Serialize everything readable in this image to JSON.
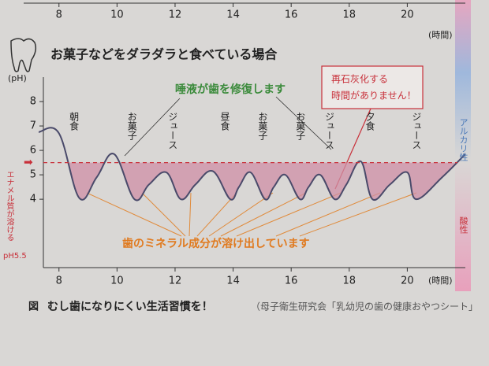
{
  "chart_data": [
    {
      "type": "line",
      "title": "お菓子などをダラダラと食べている場合",
      "ylabel": "(pH)",
      "xlabel": "(時間)",
      "xlim": [
        7.3,
        22
      ],
      "ylim": [
        1.2,
        9
      ],
      "xticks": [
        8,
        10,
        12,
        14,
        16,
        18,
        20
      ],
      "yticks": [
        4,
        5,
        6,
        7,
        8
      ],
      "x": [
        7.3,
        8.0,
        8.7,
        9.3,
        9.9,
        10.6,
        11.1,
        11.7,
        12.2,
        12.7,
        13.3,
        13.9,
        14.2,
        14.6,
        15.1,
        15.4,
        15.8,
        16.3,
        16.6,
        17.0,
        17.5,
        17.9,
        18.4,
        18.8,
        19.4,
        20.0,
        20.3,
        21.2,
        22.0
      ],
      "series": [
        {
          "color": "#4a4a6a",
          "values": [
            6.75,
            6.7,
            4.05,
            4.9,
            5.85,
            4.0,
            4.6,
            5.1,
            4.0,
            4.6,
            5.15,
            4.0,
            4.5,
            5.1,
            4.0,
            4.5,
            5.0,
            4.0,
            4.5,
            5.0,
            4.0,
            4.6,
            5.55,
            4.0,
            4.6,
            5.1,
            4.0,
            4.9,
            5.85
          ]
        }
      ],
      "threshold": {
        "value": 5.5,
        "color": "#c8303a",
        "label": "エナメル質が溶ける",
        "sublabel": "pH5.5"
      },
      "fill_color": "#cf8fa6",
      "events": {
        "x": [
          8.5,
          10.5,
          11.9,
          13.7,
          15.0,
          16.3,
          17.3,
          18.7,
          20.3
        ],
        "labels": [
          "朝食",
          "お菓子",
          "ジュース",
          "昼食",
          "お菓子",
          "お菓子",
          "ジュース",
          "夕食",
          "ジュース"
        ]
      },
      "annotations": {
        "saliva": "唾液が歯を修復します",
        "no_time": [
          "再石灰化する",
          "時間がありません！"
        ],
        "mineral": "歯のミネラル成分が溶け出しています"
      },
      "side_labels": {
        "alkaline": "アルカリ性",
        "acidic": "酸性"
      }
    },
    {
      "type": "axis",
      "xlim": [
        7.3,
        22
      ],
      "xticks": [
        8,
        10,
        12,
        14,
        16,
        18,
        20
      ],
      "xlabel": "(時間)"
    }
  ],
  "caption": {
    "label": "図",
    "text": "むし歯になりにくい生活習慣を！",
    "source": "（母子衛生研究会「乳幼児の歯の健康おやつシート」"
  }
}
